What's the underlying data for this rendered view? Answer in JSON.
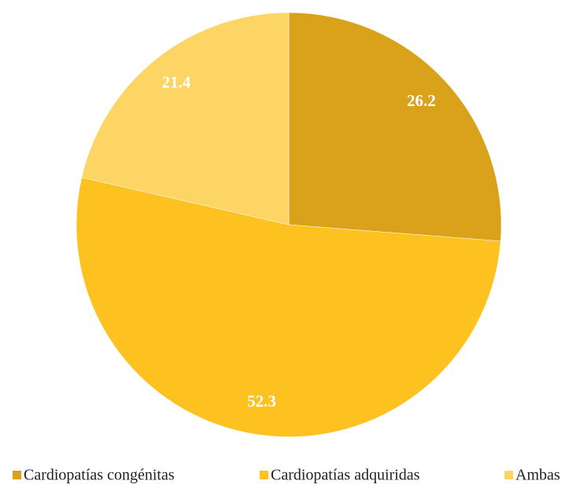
{
  "chart_data": {
    "type": "pie",
    "categories": [
      "Cardiopatías congénitas",
      "Cardiopatías adquiridas",
      "Ambas"
    ],
    "values": [
      26.2,
      52.3,
      21.4
    ],
    "colors": [
      "#d9a21a",
      "#fdc220",
      "#fdd565"
    ],
    "legend": "bottom"
  }
}
